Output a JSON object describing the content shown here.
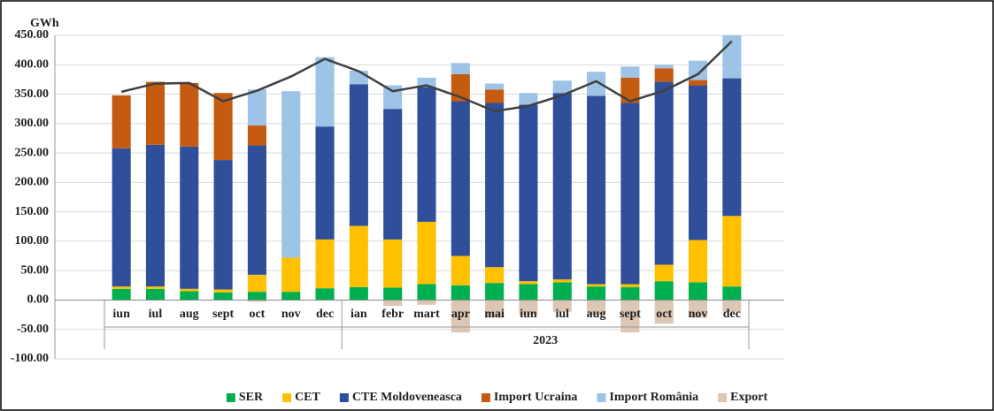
{
  "chart_data": {
    "type": "bar",
    "stacked": true,
    "y_axis_label": "GWh",
    "categories": [
      "iun",
      "iul",
      "aug",
      "sept",
      "oct",
      "nov",
      "dec",
      "ian",
      "febr",
      "mart",
      "apr",
      "mai",
      "iun",
      "iul",
      "aug",
      "sept",
      "oct",
      "nov",
      "dec"
    ],
    "groups": [
      {
        "label": null,
        "count": 7
      },
      {
        "label": "2023",
        "count": 12
      }
    ],
    "series": [
      {
        "name": "SER",
        "color": "#00b050",
        "values": [
          19,
          19,
          15,
          13,
          14,
          14,
          20,
          22,
          21,
          27,
          25,
          29,
          27,
          30,
          23,
          22,
          32,
          30,
          23
        ]
      },
      {
        "name": "CET",
        "color": "#ffc000",
        "values": [
          4,
          4,
          4,
          5,
          29,
          58,
          83,
          104,
          82,
          106,
          50,
          27,
          5,
          5,
          4,
          5,
          28,
          72,
          120
        ]
      },
      {
        "name": "CTE Moldoveneasca",
        "color": "#2f4f9a",
        "values": [
          235,
          241,
          242,
          220,
          220,
          0,
          192,
          241,
          222,
          229,
          263,
          279,
          300,
          317,
          320,
          308,
          311,
          263,
          234
        ]
      },
      {
        "name": "Import Ucraina",
        "color": "#c55a11",
        "values": [
          90,
          107,
          108,
          114,
          34,
          0,
          0,
          0,
          0,
          0,
          46,
          23,
          0,
          0,
          0,
          43,
          23,
          9,
          0
        ]
      },
      {
        "name": "Import România",
        "color": "#9dc3e6",
        "values": [
          0,
          0,
          0,
          0,
          61,
          283,
          118,
          23,
          40,
          16,
          19,
          10,
          20,
          21,
          41,
          19,
          6,
          33,
          73
        ]
      },
      {
        "name": "Export",
        "color": "#dcc6b4",
        "values": [
          0,
          0,
          0,
          0,
          -3,
          0,
          0,
          0,
          -10,
          -8,
          -55,
          -30,
          -25,
          -20,
          -25,
          -55,
          -40,
          -30,
          -20
        ]
      },
      {
        "type": "line",
        "color": "#404040",
        "values": [
          354,
          368,
          369,
          338,
          356,
          380,
          410,
          389,
          355,
          365,
          345,
          321,
          330,
          348,
          372,
          338,
          356,
          384,
          440
        ]
      }
    ],
    "ylim": [
      -100,
      450
    ],
    "yticks": [
      {
        "value": -100,
        "label": "-100.00"
      },
      {
        "value": -50,
        "label": "-50.00"
      },
      {
        "value": 0,
        "label": "0.00"
      },
      {
        "value": 50,
        "label": "50.00"
      },
      {
        "value": 100,
        "label": "100.00"
      },
      {
        "value": 150,
        "label": "150.00"
      },
      {
        "value": 200,
        "label": "200.00"
      },
      {
        "value": 250,
        "label": "250.00"
      },
      {
        "value": 300,
        "label": "300.00"
      },
      {
        "value": 350,
        "label": "350.00"
      },
      {
        "value": 400,
        "label": "400.00"
      },
      {
        "value": 450,
        "label": "450.00"
      }
    ],
    "grid": true,
    "legend": "bottom"
  }
}
